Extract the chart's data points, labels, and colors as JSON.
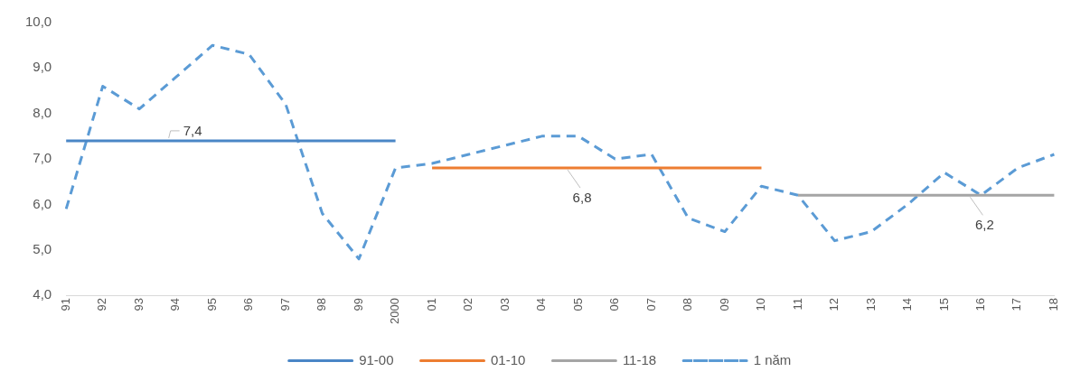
{
  "chart_data": {
    "type": "line",
    "categories": [
      "91",
      "92",
      "93",
      "94",
      "95",
      "96",
      "97",
      "98",
      "99",
      "2000",
      "01",
      "02",
      "03",
      "04",
      "05",
      "06",
      "07",
      "08",
      "09",
      "10",
      "11",
      "12",
      "13",
      "14",
      "15",
      "16",
      "17",
      "18"
    ],
    "series": [
      {
        "name": "91-00",
        "color": "#4a86c6",
        "line_style": "solid",
        "values": [
          7.4,
          7.4,
          7.4,
          7.4,
          7.4,
          7.4,
          7.4,
          7.4,
          7.4,
          7.4,
          null,
          null,
          null,
          null,
          null,
          null,
          null,
          null,
          null,
          null,
          null,
          null,
          null,
          null,
          null,
          null,
          null,
          null
        ]
      },
      {
        "name": "01-10",
        "color": "#ed7d31",
        "line_style": "solid",
        "values": [
          null,
          null,
          null,
          null,
          null,
          null,
          null,
          null,
          null,
          null,
          6.8,
          6.8,
          6.8,
          6.8,
          6.8,
          6.8,
          6.8,
          6.8,
          6.8,
          6.8,
          null,
          null,
          null,
          null,
          null,
          null,
          null,
          null
        ]
      },
      {
        "name": "11-18",
        "color": "#a5a5a5",
        "line_style": "solid",
        "values": [
          null,
          null,
          null,
          null,
          null,
          null,
          null,
          null,
          null,
          null,
          null,
          null,
          null,
          null,
          null,
          null,
          null,
          null,
          null,
          null,
          6.2,
          6.2,
          6.2,
          6.2,
          6.2,
          6.2,
          6.2,
          6.2
        ]
      },
      {
        "name": "1 năm",
        "color": "#5b9bd5",
        "line_style": "dashed",
        "values": [
          5.9,
          8.6,
          8.1,
          8.8,
          9.5,
          9.3,
          8.2,
          5.8,
          4.8,
          6.8,
          6.9,
          7.1,
          7.3,
          7.5,
          7.5,
          7.0,
          7.1,
          5.7,
          5.4,
          6.4,
          6.2,
          5.2,
          5.4,
          6.0,
          6.7,
          6.2,
          6.8,
          7.1
        ]
      }
    ],
    "ylim": [
      4,
      10
    ],
    "yticks": [
      {
        "value": 4,
        "label": "4,0"
      },
      {
        "value": 5,
        "label": "5,0"
      },
      {
        "value": 6,
        "label": "6,0"
      },
      {
        "value": 7,
        "label": "7,0"
      },
      {
        "value": 8,
        "label": "8,0"
      },
      {
        "value": 9,
        "label": "9,0"
      },
      {
        "value": 10,
        "label": "10,0"
      }
    ],
    "annotations": [
      {
        "text": "7,4",
        "x": "94",
        "y": 7.4
      },
      {
        "text": "6,8",
        "x": "05",
        "y": 6.8
      },
      {
        "text": "6,2",
        "x": "16",
        "y": 6.2
      }
    ],
    "legend": "bottom",
    "marker": "none",
    "grid": false
  }
}
